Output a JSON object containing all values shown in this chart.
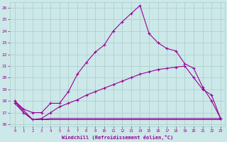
{
  "line1_x": [
    0,
    1,
    2,
    3,
    4,
    5,
    6,
    7,
    8,
    9,
    10,
    11,
    12,
    13,
    14,
    15,
    16,
    17,
    18,
    19,
    20,
    21,
    22,
    23
  ],
  "line1_y": [
    18,
    17.3,
    17,
    17,
    17.8,
    17.8,
    18.8,
    20.3,
    21.3,
    22.2,
    22.8,
    24,
    24.8,
    25.5,
    26.2,
    23.8,
    23,
    22.5,
    22.3,
    21.2,
    20.8,
    19.2,
    18.0,
    16.5
  ],
  "line2_x": [
    0,
    1,
    2,
    3,
    4,
    5,
    6,
    7,
    8,
    9,
    10,
    11,
    12,
    13,
    14,
    15,
    16,
    17,
    18,
    19,
    20,
    21,
    22,
    23
  ],
  "line2_y": [
    17.8,
    17.0,
    16.4,
    16.5,
    17.0,
    17.5,
    17.8,
    18.1,
    18.5,
    18.8,
    19.1,
    19.4,
    19.7,
    20.0,
    20.3,
    20.5,
    20.7,
    20.8,
    20.9,
    21.0,
    20.0,
    19.0,
    18.5,
    16.5
  ],
  "line3_x": [
    0,
    2,
    3,
    4,
    19,
    20,
    22,
    23
  ],
  "line3_y": [
    18.0,
    16.4,
    16.4,
    16.5,
    16.5,
    16.5,
    16.5,
    16.5
  ],
  "line4_x": [
    0,
    1,
    2,
    3,
    4,
    5,
    19,
    20,
    21,
    22,
    23
  ],
  "line4_y": [
    18.0,
    17.0,
    16.4,
    16.4,
    16.4,
    16.4,
    16.4,
    16.4,
    16.4,
    16.4,
    16.4
  ],
  "color": "#990099",
  "bg_color": "#cce8e8",
  "grid_color": "#aacccc",
  "xlabel": "Windchill (Refroidissement éolien,°C)",
  "xlim": [
    -0.5,
    23.5
  ],
  "ylim": [
    15.8,
    26.5
  ],
  "yticks": [
    16,
    17,
    18,
    19,
    20,
    21,
    22,
    23,
    24,
    25,
    26
  ],
  "xticks": [
    0,
    1,
    2,
    3,
    4,
    5,
    6,
    7,
    8,
    9,
    10,
    11,
    12,
    13,
    14,
    15,
    16,
    17,
    18,
    19,
    20,
    21,
    22,
    23
  ],
  "markersize": 2.5,
  "linewidth": 0.8
}
